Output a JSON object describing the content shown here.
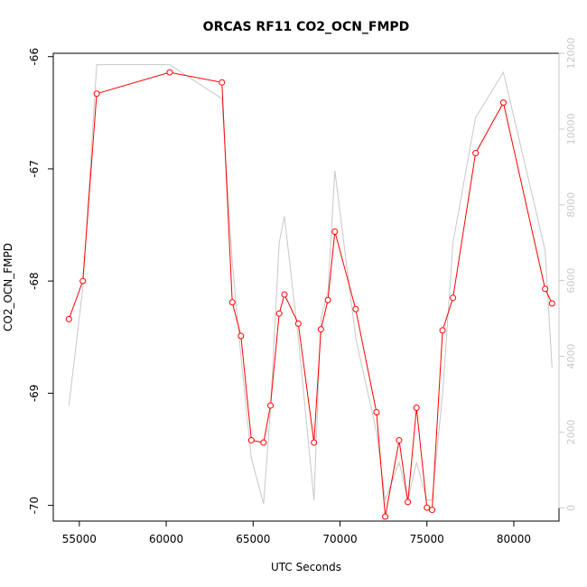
{
  "chart_data": {
    "type": "line",
    "title": "ORCAS RF11 CO2_OCN_FMPD",
    "xlabel": "UTC Seconds",
    "ylabel": "CO2_OCN_FMPD",
    "xlim": [
      53500,
      82600
    ],
    "ylim": [
      -70.14,
      -65.97
    ],
    "y2lim": [
      -350,
      12000
    ],
    "x_ticks": [
      55000,
      60000,
      65000,
      70000,
      75000,
      80000
    ],
    "y_ticks": [
      -66,
      -67,
      -68,
      -69,
      -70
    ],
    "y2_ticks": [
      0,
      2000,
      4000,
      6000,
      8000,
      10000,
      12000
    ],
    "series": [
      {
        "role": "primary",
        "color": "#ff0000",
        "marker": "open-circle",
        "axis": "left",
        "points": [
          [
            54400,
            -68.34
          ],
          [
            55200,
            -68.0
          ],
          [
            56000,
            -66.33
          ],
          [
            60200,
            -66.14
          ],
          [
            63200,
            -66.23
          ],
          [
            63800,
            -68.19
          ],
          [
            64300,
            -68.49
          ],
          [
            64900,
            -69.42
          ],
          [
            65600,
            -69.44
          ],
          [
            66000,
            -69.11
          ],
          [
            66500,
            -68.29
          ],
          [
            66800,
            -68.12
          ],
          [
            67600,
            -68.38
          ],
          [
            68500,
            -69.44
          ],
          [
            68900,
            -68.43
          ],
          [
            69300,
            -68.17
          ],
          [
            69700,
            -67.56
          ],
          [
            70900,
            -68.25
          ],
          [
            72100,
            -69.17
          ],
          [
            72600,
            -70.1
          ],
          [
            73400,
            -69.42
          ],
          [
            73900,
            -69.97
          ],
          [
            74400,
            -69.13
          ],
          [
            75000,
            -70.02
          ],
          [
            75300,
            -70.04
          ],
          [
            75900,
            -68.44
          ],
          [
            76500,
            -68.15
          ],
          [
            77800,
            -66.86
          ],
          [
            79400,
            -66.41
          ],
          [
            81800,
            -68.07
          ],
          [
            82200,
            -68.2
          ]
        ]
      },
      {
        "role": "secondary",
        "color": "#c8c8c8",
        "marker": "none",
        "axis": "right",
        "points": [
          [
            54400,
            2700
          ],
          [
            55200,
            5800
          ],
          [
            56000,
            11700
          ],
          [
            60200,
            11700
          ],
          [
            63200,
            10800
          ],
          [
            63800,
            6500
          ],
          [
            64300,
            4000
          ],
          [
            64900,
            1300
          ],
          [
            65600,
            100
          ],
          [
            66000,
            2600
          ],
          [
            66500,
            7000
          ],
          [
            66800,
            7700
          ],
          [
            67600,
            4500
          ],
          [
            68500,
            200
          ],
          [
            68900,
            5000
          ],
          [
            69300,
            5700
          ],
          [
            69700,
            8900
          ],
          [
            70900,
            4500
          ],
          [
            72100,
            2000
          ],
          [
            72600,
            200
          ],
          [
            73400,
            1200
          ],
          [
            73900,
            200
          ],
          [
            74400,
            1200
          ],
          [
            75000,
            200
          ],
          [
            75300,
            200
          ],
          [
            75900,
            3000
          ],
          [
            76500,
            7000
          ],
          [
            77800,
            10300
          ],
          [
            79400,
            11500
          ],
          [
            81800,
            6800
          ],
          [
            82200,
            3700
          ]
        ]
      }
    ]
  }
}
